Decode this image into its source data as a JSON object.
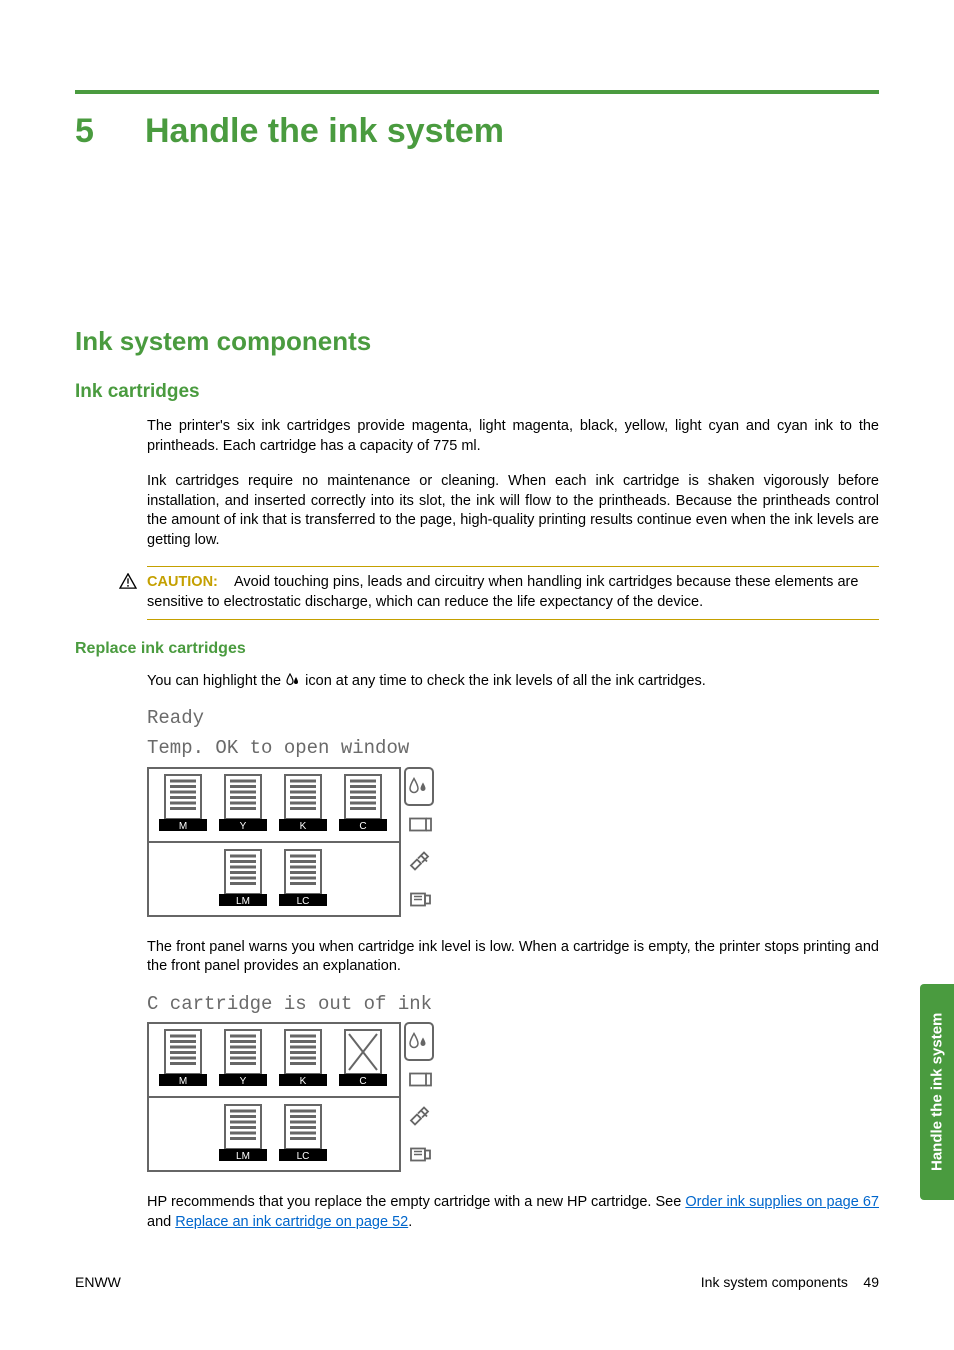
{
  "chapter": {
    "number": "5",
    "title": "Handle the ink system"
  },
  "h1": "Ink system components",
  "h2": "Ink cartridges",
  "p1": "The printer's six ink cartridges provide magenta, light magenta, black, yellow, light cyan and cyan ink to the printheads. Each cartridge has a capacity of 775 ml.",
  "p2": "Ink cartridges require no maintenance or cleaning. When each ink cartridge is shaken vigorously before installation, and inserted correctly into its slot, the ink will flow to the printheads. Because the printheads control the amount of ink that is transferred to the page, high-quality printing results continue even when the ink levels are getting low.",
  "caution": {
    "label": "CAUTION:",
    "text": "Avoid touching pins, leads and circuitry when handling ink cartridges because these elements are sensitive to electrostatic discharge, which can reduce the life expectancy of the device."
  },
  "h3": "Replace ink cartridges",
  "p3_a": "You can highlight the ",
  "p3_b": " icon at any time to check the ink levels of all the ink cartridges.",
  "lcd1": {
    "line1": "Ready",
    "line2": "Temp. OK to open window"
  },
  "panel1": {
    "top": [
      {
        "label": "M",
        "level": 0.85,
        "empty": false
      },
      {
        "label": "Y",
        "level": 0.85,
        "empty": false
      },
      {
        "label": "K",
        "level": 0.85,
        "empty": false
      },
      {
        "label": "C",
        "level": 0.85,
        "empty": false
      }
    ],
    "bottom": [
      {
        "label": "LM",
        "level": 0.85,
        "empty": false
      },
      {
        "label": "LC",
        "level": 0.85,
        "empty": false
      }
    ],
    "highlighted_side_icon": 0
  },
  "p4": "The front panel warns you when cartridge ink level is low. When a cartridge is empty, the printer stops printing and the front panel provides an explanation.",
  "lcd2": {
    "line1": "C cartridge is out of ink"
  },
  "panel2": {
    "top": [
      {
        "label": "M",
        "level": 0.85,
        "empty": false
      },
      {
        "label": "Y",
        "level": 0.85,
        "empty": false
      },
      {
        "label": "K",
        "level": 0.85,
        "empty": false
      },
      {
        "label": "C",
        "level": 0,
        "empty": true
      }
    ],
    "bottom": [
      {
        "label": "LM",
        "level": 0.85,
        "empty": false
      },
      {
        "label": "LC",
        "level": 0.85,
        "empty": false
      }
    ],
    "highlighted_side_icon": 0
  },
  "p5_a": "HP recommends that you replace the empty cartridge with a new HP cartridge. See ",
  "p5_link1": "Order ink supplies on page 67",
  "p5_b": " and ",
  "p5_link2": "Replace an ink cartridge on page 52",
  "p5_c": ".",
  "footer": {
    "left": "ENWW",
    "right_label": "Ink system components",
    "page": "49"
  },
  "side_tab": "Handle the ink system",
  "colors": {
    "green": "#4a9b3f",
    "caution": "#c4a000",
    "link": "#0066cc",
    "lcd_gray": "#6a6a6a",
    "panel_border": "#666666"
  }
}
